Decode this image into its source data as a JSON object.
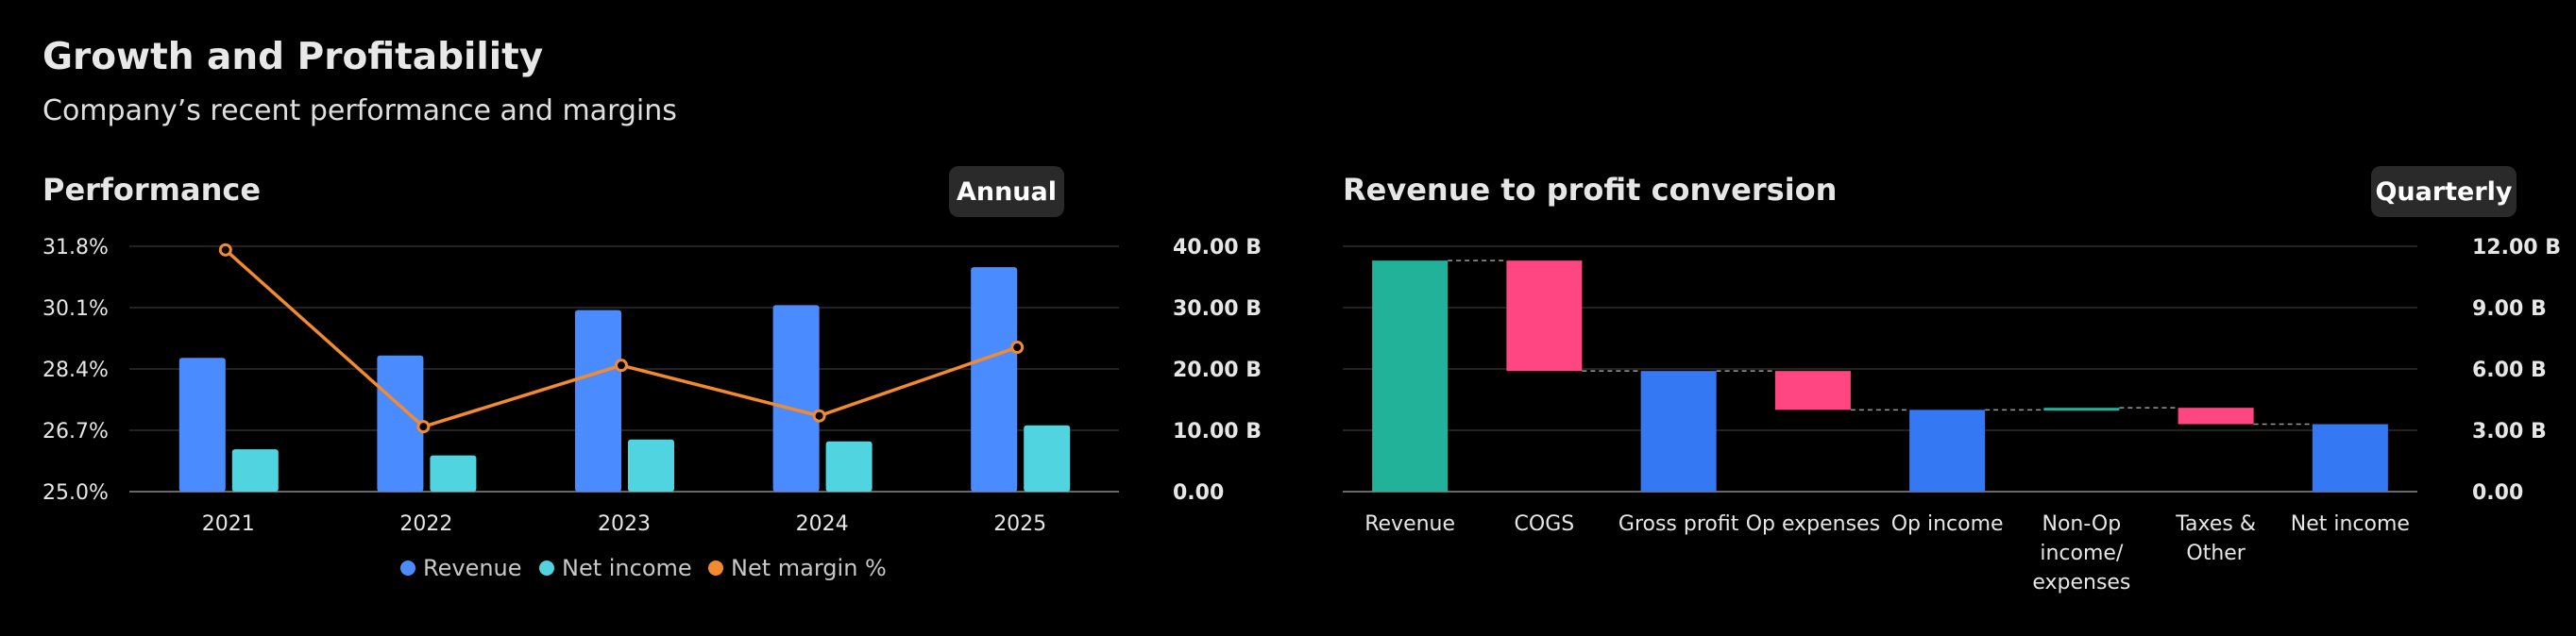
{
  "header": {
    "title": "Growth and Profitability",
    "subtitle": "Company’s recent performance and margins"
  },
  "performance": {
    "title": "Performance",
    "toggle_label": "Annual"
  },
  "conversion": {
    "title": "Revenue to profit conversion",
    "toggle_label": "Quarterly"
  },
  "legend": {
    "revenue": "Revenue",
    "net_income": "Net income",
    "net_margin": "Net margin %"
  },
  "colors": {
    "revenue": "#4a8cff",
    "net_income": "#4fd4e0",
    "net_margin": "#f28a30",
    "positive": "#22b29a",
    "negative": "#ff4582",
    "subtotal": "#3479f3",
    "grid": "#2e2e2e",
    "axis": "#8a8a8a",
    "text": "#e6e6e6"
  },
  "chart_data": [
    {
      "type": "bar",
      "title": "Performance",
      "categories": [
        "2021",
        "2022",
        "2023",
        "2024",
        "2025"
      ],
      "series": [
        {
          "name": "Revenue",
          "axis": "right",
          "values": [
            21.8,
            22.2,
            29.6,
            30.4,
            36.6
          ]
        },
        {
          "name": "Net income",
          "axis": "right",
          "values": [
            6.9,
            5.9,
            8.5,
            8.2,
            10.8
          ]
        },
        {
          "name": "Net margin %",
          "type": "line",
          "axis": "left",
          "values": [
            31.7,
            26.8,
            28.5,
            27.1,
            29.0
          ]
        }
      ],
      "y_left": {
        "ticks": [
          "31.8%",
          "30.1%",
          "28.4%",
          "26.7%",
          "25.0%"
        ],
        "range": [
          25.0,
          31.8
        ]
      },
      "y_right": {
        "ticks": [
          "40.00 B",
          "30.00 B",
          "20.00 B",
          "10.00 B",
          "0.00"
        ],
        "range": [
          0,
          40
        ]
      },
      "grid": true,
      "legend": "bottom-center"
    },
    {
      "type": "waterfall",
      "title": "Revenue to profit conversion",
      "categories": [
        "Revenue",
        "COGS",
        "Gross profit",
        "Op expenses",
        "Op income",
        "Non-Op income/ expenses",
        "Taxes & Other",
        "Net income"
      ],
      "category_lines": [
        [
          "Revenue"
        ],
        [
          "COGS"
        ],
        [
          "Gross profit"
        ],
        [
          "Op expenses"
        ],
        [
          "Op income"
        ],
        [
          "Non-Op",
          "income/",
          "expenses"
        ],
        [
          "Taxes &",
          "Other"
        ],
        [
          "Net income"
        ]
      ],
      "steps": [
        {
          "kind": "total",
          "value": 11.3
        },
        {
          "kind": "decrease",
          "value": -5.4
        },
        {
          "kind": "subtotal",
          "value": 5.9
        },
        {
          "kind": "decrease",
          "value": -1.9
        },
        {
          "kind": "subtotal",
          "value": 4.0
        },
        {
          "kind": "increase",
          "value": 0.1
        },
        {
          "kind": "decrease",
          "value": -0.8
        },
        {
          "kind": "total",
          "value": 3.3
        }
      ],
      "y_right": {
        "ticks": [
          "12.00 B",
          "9.00 B",
          "6.00 B",
          "3.00 B",
          "0.00"
        ],
        "range": [
          0,
          12
        ]
      },
      "grid": true
    }
  ]
}
